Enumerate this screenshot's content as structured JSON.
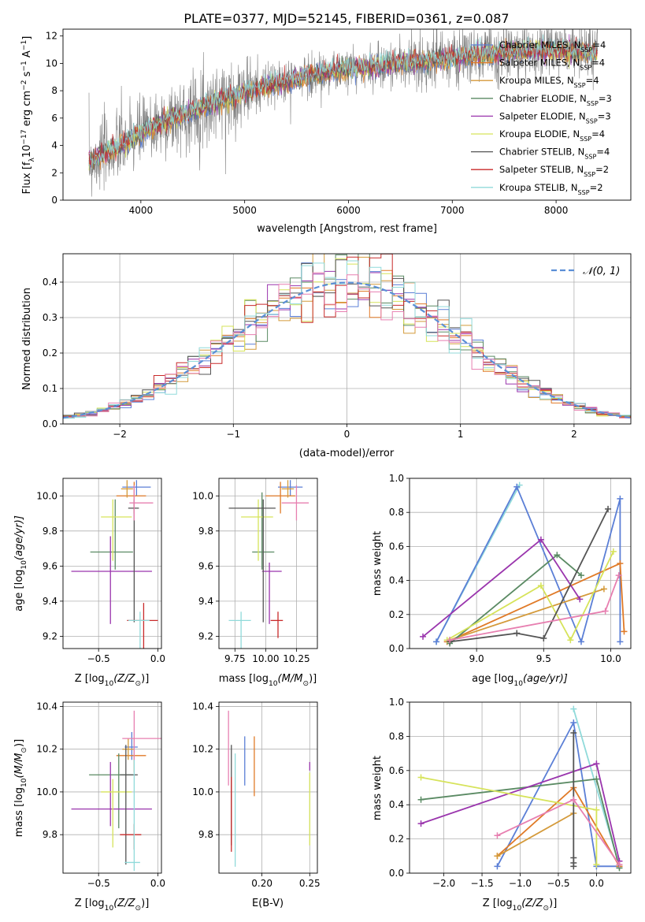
{
  "figure": {
    "title": "PLATE=0377, MJD=52145, FIBERID=0361, z=0.087",
    "model_colors": [
      "#5b7fd6",
      "#e07a27",
      "#d49a3a",
      "#5a8a63",
      "#9a35ad",
      "#d6e35a",
      "#545454",
      "#c82a2a",
      "#90dada",
      "#e77fb0"
    ],
    "spectrum_line_color": "#7f7f7f"
  },
  "chart_data": [
    {
      "id": "spectrum",
      "type": "line",
      "title": "PLATE=0377, MJD=52145, FIBERID=0361, z=0.087",
      "xlabel": "wavelength [Angstrom, rest frame]",
      "ylabel_parts": [
        "Flux [f",
        "λ",
        "10",
        "−17",
        " erg cm",
        "−2",
        " s",
        "−1",
        " A",
        "−1",
        "]"
      ],
      "xlim": [
        3250,
        8720
      ],
      "ylim": [
        0,
        12.5
      ],
      "xticks": [
        4000,
        5000,
        6000,
        7000,
        8000
      ],
      "yticks": [
        0,
        2,
        4,
        6,
        8,
        10,
        12
      ],
      "grid": false,
      "legend_position": "right",
      "data_x_range": [
        3500,
        8400
      ],
      "model_curve": {
        "x": [
          3500,
          3700,
          3850,
          4000,
          4250,
          4500,
          4750,
          5000,
          5250,
          5500,
          5750,
          6000,
          6250,
          6500,
          6750,
          7000,
          7250,
          7500,
          7750,
          8000,
          8200,
          8400
        ],
        "y": [
          2.8,
          3.6,
          4.2,
          4.9,
          5.8,
          6.5,
          7.3,
          7.9,
          8.4,
          8.9,
          9.3,
          9.6,
          9.8,
          10.0,
          10.2,
          10.4,
          10.6,
          10.8,
          10.9,
          11.0,
          10.9,
          10.8
        ]
      },
      "legend": [
        {
          "name": "Chabrier MILES",
          "n_ssp": "4",
          "color": "#5b7fd6"
        },
        {
          "name": "Salpeter MILES",
          "n_ssp": "4",
          "color": "#e07a27"
        },
        {
          "name": "Kroupa MILES",
          "n_ssp": "4",
          "color": "#d49a3a"
        },
        {
          "name": "Chabrier ELODIE",
          "n_ssp": "3",
          "color": "#5a8a63"
        },
        {
          "name": "Salpeter ELODIE",
          "n_ssp": "3",
          "color": "#9a35ad"
        },
        {
          "name": "Kroupa ELODIE",
          "n_ssp": "4",
          "color": "#d6e35a"
        },
        {
          "name": "Chabrier STELIB",
          "n_ssp": "4",
          "color": "#545454"
        },
        {
          "name": "Salpeter STELIB",
          "n_ssp": "2",
          "color": "#c82a2a"
        },
        {
          "name": "Kroupa STELIB",
          "n_ssp": "2",
          "color": "#90dada"
        }
      ],
      "legend_text_parts": [
        ", N",
        "SSP",
        "="
      ]
    },
    {
      "id": "residuals",
      "type": "histogram",
      "xlabel": "(data-model)/error",
      "ylabel": "Normed distribution",
      "xlim": [
        -2.5,
        2.5
      ],
      "ylim": [
        0,
        0.48
      ],
      "xticks": [
        -2,
        -1,
        0,
        1,
        2
      ],
      "yticks": [
        0.0,
        0.1,
        0.2,
        0.3,
        0.4
      ],
      "grid": true,
      "legend_position": "top-right",
      "bin_width": 0.1,
      "bin_start": -2.5,
      "gaussian": {
        "label": "𝒩(0, 1)",
        "mean": 0,
        "sigma": 1,
        "color": "#5b8fd6"
      }
    },
    {
      "id": "age-vs-Z",
      "type": "errorbar",
      "xlabel_parts": [
        "Z [log",
        "10",
        "(Z/Z",
        "⊙",
        ")]"
      ],
      "ylabel_parts": [
        "age  [log",
        "10",
        "(age/yr)]"
      ],
      "xlim": [
        -0.8,
        0.03
      ],
      "ylim": [
        9.13,
        10.1
      ],
      "xticks": [
        -0.5,
        0.0
      ],
      "yticks": [
        9.2,
        9.4,
        9.6,
        9.8,
        10.0
      ],
      "grid": true,
      "points": [
        {
          "x": -0.18,
          "xerr": [
            0.12,
            0.12
          ],
          "y": 10.05,
          "yerr": [
            0.05,
            0.04
          ],
          "color": "#5b7fd6"
        },
        {
          "x": -0.2,
          "xerr": [
            0.15,
            0.1
          ],
          "y": 10.0,
          "yerr": [
            0.1,
            0.08
          ],
          "color": "#e07a27"
        },
        {
          "x": -0.26,
          "xerr": [
            0.05,
            0.05
          ],
          "y": 10.04,
          "yerr": [
            0.05,
            0.05
          ],
          "color": "#d49a3a"
        },
        {
          "x": -0.36,
          "xerr": [
            0.21,
            0.15
          ],
          "y": 9.68,
          "yerr": [
            0.1,
            0.3
          ],
          "color": "#5a8a63"
        },
        {
          "x": -0.4,
          "xerr": [
            0.33,
            0.35
          ],
          "y": 9.57,
          "yerr": [
            0.3,
            0.2
          ],
          "color": "#9a35ad"
        },
        {
          "x": -0.38,
          "xerr": [
            0.1,
            0.16
          ],
          "y": 9.88,
          "yerr": [
            0.25,
            0.1
          ],
          "color": "#d6e35a"
        },
        {
          "x": -0.2,
          "xerr": [
            0.05,
            0.04
          ],
          "y": 9.93,
          "yerr": [
            0.65,
            0.05
          ],
          "color": "#545454"
        },
        {
          "x": -0.12,
          "xerr": [
            0.14,
            0.12
          ],
          "y": 9.29,
          "yerr": [
            0.2,
            0.1
          ],
          "color": "#c82a2a"
        },
        {
          "x": -0.15,
          "xerr": [
            0.1,
            0.08
          ],
          "y": 9.29,
          "yerr": [
            0.6,
            0.05
          ],
          "color": "#90dada"
        },
        {
          "x": -0.2,
          "xerr": [
            0.04,
            0.16
          ],
          "y": 9.96,
          "yerr": [
            0.1,
            0.1
          ],
          "color": "#e77fb0"
        }
      ]
    },
    {
      "id": "age-vs-mass",
      "type": "errorbar",
      "xlabel_parts": [
        "mass [log",
        "10",
        "(M/M",
        "⊙",
        ")]"
      ],
      "ylabel": "",
      "xlim": [
        9.62,
        10.42
      ],
      "ylim": [
        9.13,
        10.1
      ],
      "xticks": [
        9.75,
        10.0,
        10.25
      ],
      "xtick_labels": [
        "9.75",
        "10.00",
        "10.25"
      ],
      "yticks": [
        9.2,
        9.4,
        9.6,
        9.8,
        10.0
      ],
      "grid": true,
      "points": [
        {
          "x": 10.2,
          "xerr": [
            0.1,
            0.1
          ],
          "y": 10.05,
          "yerr": [
            0.05,
            0.04
          ],
          "color": "#5b7fd6"
        },
        {
          "x": 10.12,
          "xerr": [
            0.12,
            0.12
          ],
          "y": 10.0,
          "yerr": [
            0.1,
            0.08
          ],
          "color": "#e07a27"
        },
        {
          "x": 10.18,
          "xerr": [
            0.05,
            0.05
          ],
          "y": 10.04,
          "yerr": [
            0.05,
            0.05
          ],
          "color": "#d49a3a"
        },
        {
          "x": 9.97,
          "xerr": [
            0.08,
            0.1
          ],
          "y": 9.68,
          "yerr": [
            0.1,
            0.34
          ],
          "color": "#5a8a63"
        },
        {
          "x": 10.03,
          "xerr": [
            0.06,
            0.1
          ],
          "y": 9.57,
          "yerr": [
            0.3,
            0.05
          ],
          "color": "#9a35ad"
        },
        {
          "x": 9.94,
          "xerr": [
            0.14,
            0.12
          ],
          "y": 9.88,
          "yerr": [
            0.25,
            0.1
          ],
          "color": "#d6e35a"
        },
        {
          "x": 9.98,
          "xerr": [
            0.28,
            0.1
          ],
          "y": 9.93,
          "yerr": [
            0.65,
            0.05
          ],
          "color": "#545454"
        },
        {
          "x": 10.1,
          "xerr": [
            0.06,
            0.04
          ],
          "y": 9.29,
          "yerr": [
            0.1,
            0.05
          ],
          "color": "#c82a2a"
        },
        {
          "x": 9.8,
          "xerr": [
            0.1,
            0.08
          ],
          "y": 9.29,
          "yerr": [
            0.6,
            0.05
          ],
          "color": "#90dada"
        },
        {
          "x": 10.25,
          "xerr": [
            0.12,
            0.1
          ],
          "y": 9.96,
          "yerr": [
            0.1,
            0.1
          ],
          "color": "#e77fb0"
        }
      ]
    },
    {
      "id": "weight-vs-age",
      "type": "line",
      "xlabel_parts": [
        "age  [log",
        "10",
        "(age/yr)]"
      ],
      "ylabel": "mass weight",
      "xlim": [
        8.5,
        10.15
      ],
      "ylim": [
        0,
        1.0
      ],
      "xticks": [
        9.0,
        9.5,
        10.0
      ],
      "yticks": [
        0.0,
        0.2,
        0.4,
        0.6,
        0.8,
        1.0
      ],
      "grid": true,
      "series": [
        {
          "color": "#90dada",
          "x": [
            8.7,
            9.32
          ],
          "y": [
            0.04,
            0.96
          ]
        },
        {
          "color": "#5b7fd6",
          "x": [
            8.7,
            9.3,
            9.78,
            10.07,
            10.07
          ],
          "y": [
            0.04,
            0.95,
            0.04,
            0.88,
            0.04
          ]
        },
        {
          "color": "#e07a27",
          "x": [
            8.78,
            10.07,
            10.1
          ],
          "y": [
            0.04,
            0.5,
            0.1
          ]
        },
        {
          "color": "#d49a3a",
          "x": [
            8.8,
            9.95
          ],
          "y": [
            0.05,
            0.35
          ]
        },
        {
          "color": "#5a8a63",
          "x": [
            8.8,
            9.6,
            9.78
          ],
          "y": [
            0.03,
            0.55,
            0.43
          ]
        },
        {
          "color": "#9a35ad",
          "x": [
            8.6,
            9.48,
            9.77
          ],
          "y": [
            0.07,
            0.64,
            0.29
          ]
        },
        {
          "color": "#d6e35a",
          "x": [
            8.78,
            9.48,
            9.7,
            10.02
          ],
          "y": [
            0.05,
            0.37,
            0.05,
            0.57
          ]
        },
        {
          "color": "#545454",
          "x": [
            8.8,
            9.3,
            9.5,
            9.98
          ],
          "y": [
            0.04,
            0.09,
            0.06,
            0.82
          ]
        },
        {
          "color": "#e77fb0",
          "x": [
            8.8,
            9.96,
            10.06
          ],
          "y": [
            0.05,
            0.22,
            0.43
          ]
        }
      ]
    },
    {
      "id": "mass-vs-Z",
      "type": "errorbar",
      "xlabel_parts": [
        "Z [log",
        "10",
        "(Z/Z",
        "⊙",
        ")]"
      ],
      "ylabel_parts": [
        "mass [log",
        "10",
        "(M/M",
        "⊙",
        ")]"
      ],
      "xlim": [
        -0.8,
        0.03
      ],
      "ylim": [
        9.62,
        10.42
      ],
      "xticks": [
        -0.5,
        0.0
      ],
      "yticks": [
        9.8,
        10.0,
        10.2,
        10.4
      ],
      "grid": true,
      "points": [
        {
          "x": -0.22,
          "xerr": [
            0.06,
            0.05
          ],
          "y": 10.21,
          "yerr": [
            0.06,
            0.07
          ],
          "color": "#5b7fd6"
        },
        {
          "x": -0.2,
          "xerr": [
            0.15,
            0.1
          ],
          "y": 10.17,
          "yerr": [
            0.08,
            0.08
          ],
          "color": "#e07a27"
        },
        {
          "x": -0.25,
          "xerr": [
            0.05,
            0.05
          ],
          "y": 10.2,
          "yerr": [
            0.05,
            0.05
          ],
          "color": "#d49a3a"
        },
        {
          "x": -0.33,
          "xerr": [
            0.25,
            0.12
          ],
          "y": 10.08,
          "yerr": [
            0.25,
            0.1
          ],
          "color": "#5a8a63"
        },
        {
          "x": -0.4,
          "xerr": [
            0.33,
            0.35
          ],
          "y": 9.92,
          "yerr": [
            0.08,
            0.22
          ],
          "color": "#9a35ad"
        },
        {
          "x": -0.38,
          "xerr": [
            0.1,
            0.16
          ],
          "y": 10.0,
          "yerr": [
            0.26,
            0.06
          ],
          "color": "#d6e35a"
        },
        {
          "x": -0.27,
          "xerr": [
            0.05,
            0.1
          ],
          "y": 10.08,
          "yerr": [
            0.42,
            0.14
          ],
          "color": "#545454"
        },
        {
          "x": -0.2,
          "xerr": [
            0.12,
            0.06
          ],
          "y": 9.8,
          "yerr": [
            0.07,
            0.05
          ],
          "color": "#c82a2a"
        },
        {
          "x": -0.2,
          "xerr": [
            0.08,
            0.05
          ],
          "y": 9.67,
          "yerr": [
            0.04,
            0.61
          ],
          "color": "#90dada"
        },
        {
          "x": -0.2,
          "xerr": [
            0.1,
            0.25
          ],
          "y": 10.25,
          "yerr": [
            0.1,
            0.13
          ],
          "color": "#e77fb0"
        }
      ]
    },
    {
      "id": "mass-vs-EBV",
      "type": "errorbar",
      "xlabel": "E(B-V)",
      "ylabel": "",
      "xlim": [
        0.155,
        0.258
      ],
      "ylim": [
        9.62,
        10.42
      ],
      "xticks": [
        0.2,
        0.25
      ],
      "xtick_labels": [
        "0.20",
        "0.25"
      ],
      "yticks": [
        9.8,
        10.0,
        10.2,
        10.4
      ],
      "grid": true,
      "points": [
        {
          "x": 0.182,
          "xerr": [
            0,
            0
          ],
          "y": 10.15,
          "yerr": [
            0.12,
            0.11
          ],
          "color": "#5b7fd6"
        },
        {
          "x": 0.192,
          "xerr": [
            0,
            0
          ],
          "y": 10.12,
          "yerr": [
            0.14,
            0.14
          ],
          "color": "#e07a27"
        },
        {
          "x": 0.25,
          "xerr": [
            0,
            0
          ],
          "y": 10.12,
          "yerr": [
            0.02,
            0.02
          ],
          "color": "#9a35ad"
        },
        {
          "x": 0.25,
          "xerr": [
            0,
            0
          ],
          "y": 9.93,
          "yerr": [
            0.18,
            0.16
          ],
          "color": "#d6e35a"
        },
        {
          "x": 0.168,
          "xerr": [
            0,
            0
          ],
          "y": 10.05,
          "yerr": [
            0.3,
            0.17
          ],
          "color": "#545454"
        },
        {
          "x": 0.168,
          "xerr": [
            0,
            0
          ],
          "y": 9.92,
          "yerr": [
            0.2,
            0.15
          ],
          "color": "#c82a2a"
        },
        {
          "x": 0.172,
          "xerr": [
            0,
            0
          ],
          "y": 9.95,
          "yerr": [
            0.3,
            0.23
          ],
          "color": "#90dada"
        },
        {
          "x": 0.165,
          "xerr": [
            0,
            0
          ],
          "y": 10.15,
          "yerr": [
            0.12,
            0.23
          ],
          "color": "#e77fb0"
        }
      ]
    },
    {
      "id": "weight-vs-Z",
      "type": "line",
      "xlabel_parts": [
        "Z [log",
        "10",
        "(Z/Z",
        "⊙",
        ")]"
      ],
      "ylabel": "mass weight",
      "xlim": [
        -2.45,
        0.45
      ],
      "ylim": [
        0,
        1.0
      ],
      "xticks": [
        -2.0,
        -1.5,
        -1.0,
        -0.5,
        0.0
      ],
      "yticks": [
        0.0,
        0.2,
        0.4,
        0.6,
        0.8,
        1.0
      ],
      "grid": true,
      "series": [
        {
          "color": "#90dada",
          "x": [
            -0.3,
            0.3
          ],
          "y": [
            0.96,
            0.04
          ]
        },
        {
          "color": "#5b7fd6",
          "x": [
            -1.3,
            -0.3,
            0.0,
            0.3
          ],
          "y": [
            0.04,
            0.88,
            0.04,
            0.04
          ]
        },
        {
          "color": "#e07a27",
          "x": [
            -1.3,
            -0.3,
            0.3
          ],
          "y": [
            0.1,
            0.5,
            0.04
          ]
        },
        {
          "color": "#d49a3a",
          "x": [
            -1.3,
            -0.3
          ],
          "y": [
            0.1,
            0.35
          ]
        },
        {
          "color": "#5a8a63",
          "x": [
            -2.3,
            0.0,
            0.3
          ],
          "y": [
            0.43,
            0.55,
            0.03
          ]
        },
        {
          "color": "#9a35ad",
          "x": [
            -2.3,
            0.0,
            0.3
          ],
          "y": [
            0.29,
            0.64,
            0.07
          ]
        },
        {
          "color": "#d6e35a",
          "x": [
            -2.3,
            0.0,
            0.0
          ],
          "y": [
            0.56,
            0.37,
            0.05
          ]
        },
        {
          "color": "#545454",
          "x": [
            -0.3,
            -0.3,
            -0.3,
            -0.3
          ],
          "y": [
            0.04,
            0.09,
            0.06,
            0.82
          ]
        },
        {
          "color": "#e77fb0",
          "x": [
            -1.3,
            -0.3,
            0.3
          ],
          "y": [
            0.22,
            0.43,
            0.05
          ]
        }
      ]
    }
  ]
}
